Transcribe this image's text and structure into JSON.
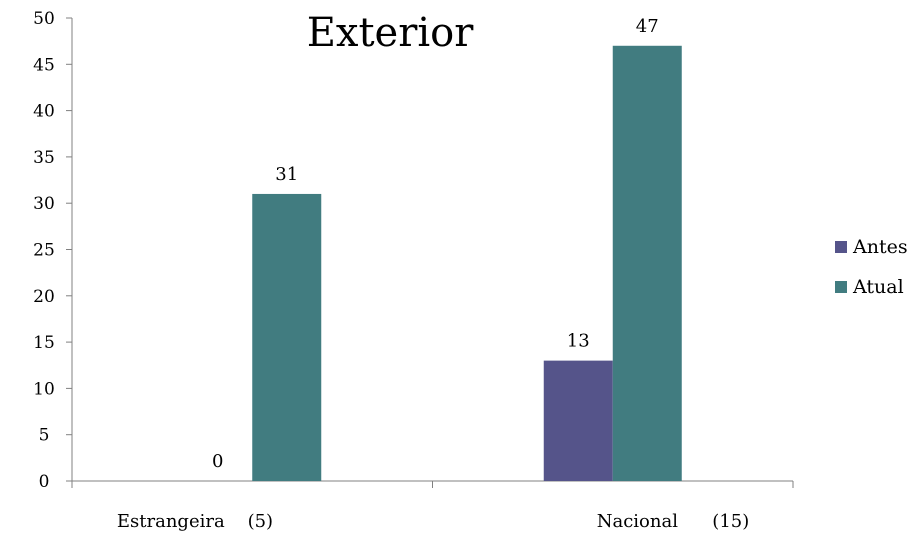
{
  "chart_data": {
    "type": "bar",
    "title": "Exterior",
    "categories": [
      "Estrangeira    (5)",
      "Nacional      (15)"
    ],
    "series": [
      {
        "name": "Antes",
        "values": [
          0,
          13
        ],
        "color": "#55548A"
      },
      {
        "name": "Atual",
        "values": [
          31,
          47
        ],
        "color": "#417C80"
      }
    ],
    "ylim": [
      0,
      50
    ],
    "yticks": [
      0,
      5,
      10,
      15,
      20,
      25,
      30,
      35,
      40,
      45,
      50
    ],
    "xlabel": "",
    "ylabel": "",
    "grid": false,
    "legend_position": "right",
    "data_labels": true
  }
}
